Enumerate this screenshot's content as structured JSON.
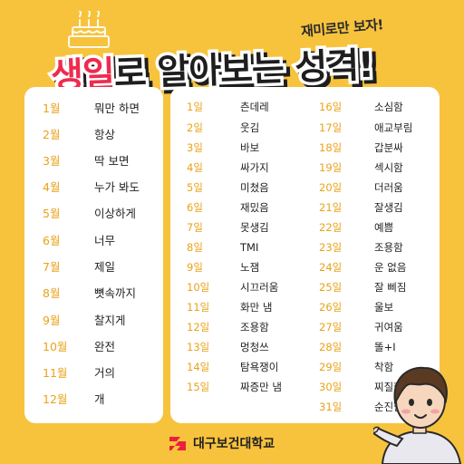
{
  "sticker": "재미로만 보자!",
  "headline": {
    "accent": "생일",
    "rest": "로 알아보는 성격!"
  },
  "months": [
    {
      "num": "1월",
      "text": "뭐만 하면"
    },
    {
      "num": "2월",
      "text": "항상"
    },
    {
      "num": "3월",
      "text": "딱 보면"
    },
    {
      "num": "4월",
      "text": "누가 봐도"
    },
    {
      "num": "5월",
      "text": "이상하게"
    },
    {
      "num": "6월",
      "text": "너무"
    },
    {
      "num": "7월",
      "text": "제일"
    },
    {
      "num": "8월",
      "text": "뼛속까지"
    },
    {
      "num": "9월",
      "text": "찰지게"
    },
    {
      "num": "10월",
      "text": "완전"
    },
    {
      "num": "11월",
      "text": "거의"
    },
    {
      "num": "12월",
      "text": "개"
    }
  ],
  "days_col1": [
    {
      "num": "1일",
      "text": "츤데레"
    },
    {
      "num": "2일",
      "text": "웃김"
    },
    {
      "num": "3일",
      "text": "바보"
    },
    {
      "num": "4일",
      "text": "싸가지"
    },
    {
      "num": "5일",
      "text": "미쳤음"
    },
    {
      "num": "6일",
      "text": "재밌음"
    },
    {
      "num": "7일",
      "text": "못생김"
    },
    {
      "num": "8일",
      "text": "TMI"
    },
    {
      "num": "9일",
      "text": "노잼"
    },
    {
      "num": "10일",
      "text": "시끄러움"
    },
    {
      "num": "11일",
      "text": "화만 냄"
    },
    {
      "num": "12일",
      "text": "조용함"
    },
    {
      "num": "13일",
      "text": "멍청쓰"
    },
    {
      "num": "14일",
      "text": "탐욕쟁이"
    },
    {
      "num": "15일",
      "text": "짜증만 냄"
    }
  ],
  "days_col2": [
    {
      "num": "16일",
      "text": "소심함"
    },
    {
      "num": "17일",
      "text": "애교부림"
    },
    {
      "num": "18일",
      "text": "갑분싸"
    },
    {
      "num": "19일",
      "text": "섹시함"
    },
    {
      "num": "20일",
      "text": "더러움"
    },
    {
      "num": "21일",
      "text": "잘생김"
    },
    {
      "num": "22일",
      "text": "예쁨"
    },
    {
      "num": "23일",
      "text": "조용함"
    },
    {
      "num": "24일",
      "text": "운 없음"
    },
    {
      "num": "25일",
      "text": "잘 삐짐"
    },
    {
      "num": "26일",
      "text": "울보"
    },
    {
      "num": "27일",
      "text": "귀여움"
    },
    {
      "num": "28일",
      "text": "똘+I"
    },
    {
      "num": "29일",
      "text": "착함"
    },
    {
      "num": "30일",
      "text": "찌질함"
    },
    {
      "num": "31일",
      "text": "순진함"
    }
  ],
  "logo": {
    "name": "대구보건대학교",
    "color": "#e8223a"
  },
  "colors": {
    "background": "#f7c33d",
    "number": "#e9a219",
    "accent": "#ee2b4f"
  }
}
